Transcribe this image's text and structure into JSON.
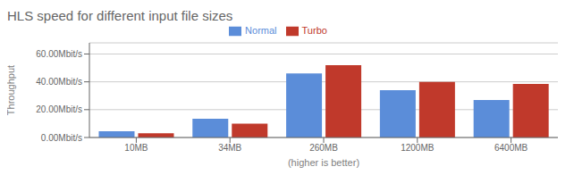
{
  "chart_data": {
    "type": "bar",
    "title": "HLS speed for different input file sizes",
    "xlabel": "(higher is better)",
    "ylabel": "Throughput",
    "categories": [
      "10MB",
      "34MB",
      "260MB",
      "1200MB",
      "6400MB"
    ],
    "series": [
      {
        "name": "Normal",
        "color": "#5B8DD9",
        "values": [
          4.5,
          13.5,
          46.0,
          34.0,
          27.0
        ]
      },
      {
        "name": "Turbo",
        "color": "#C0392B",
        "values": [
          3.0,
          10.0,
          52.0,
          40.0,
          38.5
        ]
      }
    ],
    "ylim": [
      0,
      68
    ],
    "yticks": [
      {
        "value": 0,
        "label": "0.00Mbit/s"
      },
      {
        "value": 20,
        "label": "20.00Mbit/s"
      },
      {
        "value": 40,
        "label": "40.00Mbit/s"
      },
      {
        "value": 60,
        "label": "60.00Mbit/s"
      }
    ],
    "grid": true,
    "legend": "top"
  }
}
